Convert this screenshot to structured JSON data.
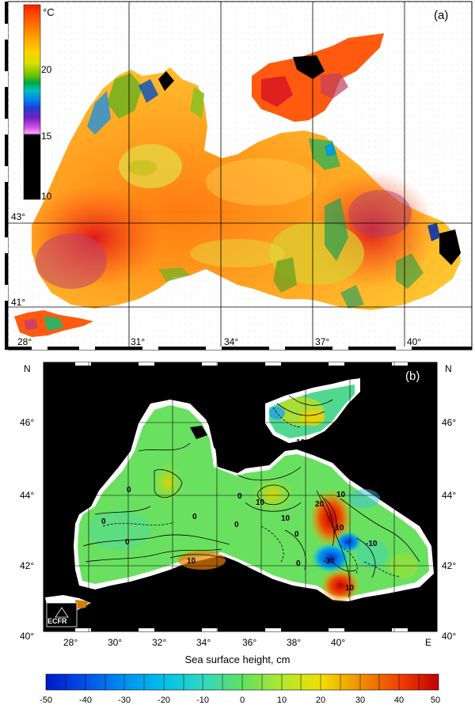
{
  "panel_a": {
    "label": "(a)",
    "colorbar": {
      "unit": "°C",
      "ticks": [
        "20",
        "15",
        "10"
      ],
      "colors": [
        "#ff0000",
        "#ff4a00",
        "#ff8a00",
        "#ffc000",
        "#e8e000",
        "#b0d000",
        "#5cb800",
        "#00a030",
        "#00b0a0",
        "#00a0e0",
        "#2060e0",
        "#4030c0",
        "#8020c0",
        "#c040d0",
        "#ff80ff",
        "#000000"
      ]
    },
    "lat_labels": [
      "43°",
      "41°"
    ],
    "lon_labels": [
      "28°",
      "31°",
      "34°",
      "37°",
      "40°"
    ]
  },
  "panel_b": {
    "label": "(b)",
    "north_left": "N",
    "north_right": "N",
    "east_label": "E",
    "lat_labels_left": [
      "46°",
      "44°",
      "42°",
      "40°"
    ],
    "lat_labels_right": [
      "46°",
      "44°",
      "42°",
      "40°"
    ],
    "lon_labels": [
      "28°",
      "30°",
      "32°",
      "34°",
      "36°",
      "38°",
      "40°"
    ],
    "contour_labels": [
      "0",
      "0",
      "0",
      "0",
      "0",
      "0",
      "0",
      "10",
      "10",
      "10",
      "10",
      "10",
      "20",
      "-10",
      "-30",
      "-10",
      "0",
      "10"
    ],
    "logo_text": "ECFR",
    "axis_title": "Sea surface height,  cm",
    "colorbar": {
      "ticks": [
        "-50",
        "-40",
        "-30",
        "-20",
        "-10",
        "0",
        "10",
        "20",
        "30",
        "40",
        "50"
      ],
      "colors": [
        "#0020d0",
        "#0050e8",
        "#0088f0",
        "#00b0f0",
        "#20d0d8",
        "#40e0a0",
        "#60e060",
        "#90e840",
        "#c8e820",
        "#f0e000",
        "#f0b000",
        "#f08000",
        "#f05000",
        "#e02010",
        "#c00000"
      ]
    }
  }
}
